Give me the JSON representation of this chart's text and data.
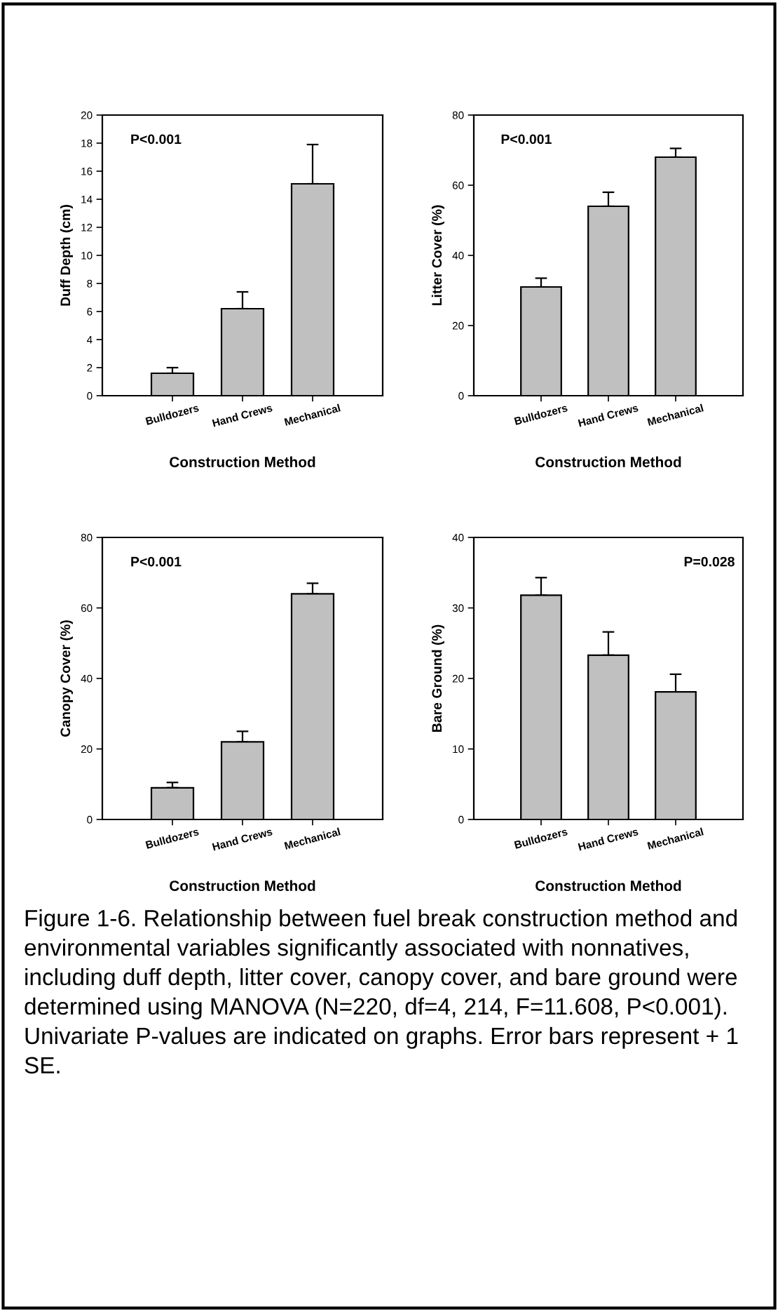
{
  "chart_data": [
    {
      "type": "bar",
      "categories": [
        "Bulldozers",
        "Hand Crews",
        "Mechanical"
      ],
      "values": [
        1.6,
        6.2,
        15.1
      ],
      "errors": [
        [
          1.6,
          2.0
        ],
        [
          6.2,
          7.4
        ],
        [
          15.1,
          17.9
        ]
      ],
      "color": "#c0c0c0",
      "ylabel": "Duff Depth (cm)",
      "xlabel": "Construction Method",
      "ylim": [
        0,
        20
      ],
      "yticks": [
        0,
        2,
        4,
        6,
        8,
        10,
        12,
        14,
        16,
        18,
        20
      ],
      "grid": false,
      "annotations": [
        "P<0.001"
      ]
    },
    {
      "type": "bar",
      "categories": [
        "Bulldozers",
        "Hand Crews",
        "Mechanical"
      ],
      "values": [
        31,
        54,
        68
      ],
      "errors": [
        [
          31,
          33.5
        ],
        [
          54,
          58
        ],
        [
          68,
          70.5
        ]
      ],
      "color": "#c0c0c0",
      "ylabel": "Litter Cover (%)",
      "xlabel": "Construction Method",
      "ylim": [
        0,
        80
      ],
      "yticks": [
        0,
        20,
        40,
        60,
        80
      ],
      "grid": false,
      "annotations": [
        "P<0.001"
      ]
    },
    {
      "type": "bar",
      "categories": [
        "Bulldozers",
        "Hand Crews",
        "Mechanical"
      ],
      "values": [
        9,
        22,
        64
      ],
      "errors": [
        [
          9,
          10.5
        ],
        [
          22,
          25
        ],
        [
          64,
          67
        ]
      ],
      "color": "#c0c0c0",
      "ylabel": "Canopy Cover (%)",
      "xlabel": "Construction Method",
      "ylim": [
        0,
        80
      ],
      "yticks": [
        0,
        20,
        40,
        60,
        80
      ],
      "grid": false,
      "annotations": [
        "P<0.001"
      ]
    },
    {
      "type": "bar",
      "categories": [
        "Bulldozers",
        "Hand Crews",
        "Mechanical"
      ],
      "values": [
        31.8,
        23.3,
        18.1
      ],
      "errors": [
        [
          31.8,
          34.3
        ],
        [
          23.3,
          26.6
        ],
        [
          18.1,
          20.6
        ]
      ],
      "color": "#c0c0c0",
      "ylabel": "Bare Ground (%)",
      "xlabel": "Construction Method",
      "ylim": [
        0,
        40
      ],
      "yticks": [
        0,
        10,
        20,
        30,
        40
      ],
      "grid": false,
      "annotations": [
        "P=0.028",
        "Figure 1-6. Relationship between fuel break construction method and environmental variables significantly associated with nonnatives, including duff depth, litter cover, canopy cover, and bare ground were determined using MANOVA (N=220, df=4, 214, F=11.608, P<0.001). Univariate P-values are indicated on graphs. Error bars represent + 1 SE."
      ]
    }
  ]
}
